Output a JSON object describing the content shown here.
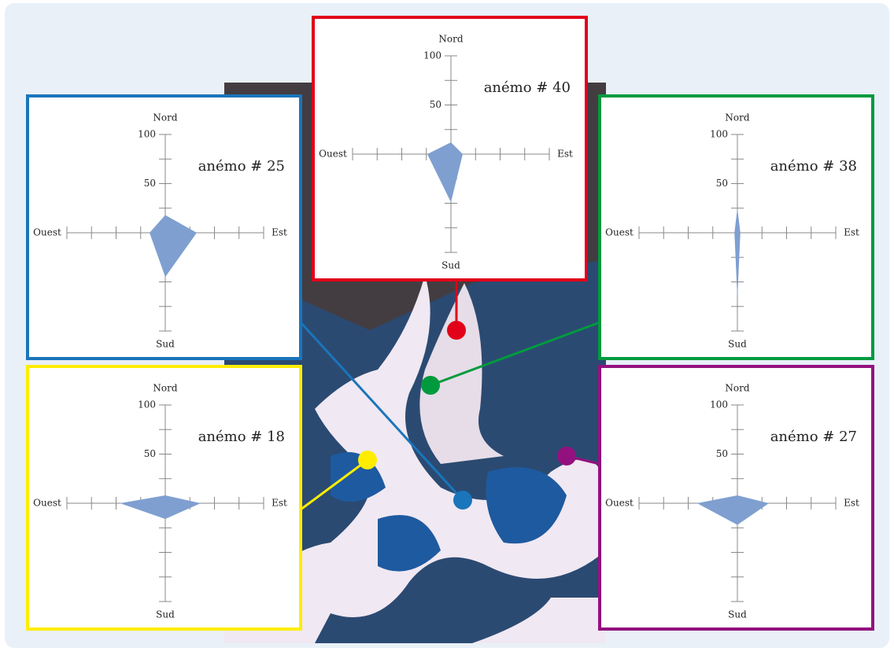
{
  "chart_data": [
    {
      "type": "radar",
      "title": "anémo # 25",
      "categories": [
        "Nord",
        "Est",
        "Sud",
        "Ouest"
      ],
      "values": [
        18,
        32,
        45,
        16
      ],
      "color": "#7f9fd0",
      "frame_color": "#1a75bb",
      "ylim": [
        0,
        100
      ],
      "yticks": [
        50,
        100
      ],
      "minor_yticks": [
        25,
        75
      ]
    },
    {
      "type": "radar",
      "title": "anémo # 40",
      "categories": [
        "Nord",
        "Est",
        "Sud",
        "Ouest"
      ],
      "values": [
        12,
        12,
        49,
        24
      ],
      "color": "#7f9fd0",
      "frame_color": "#e2001a",
      "ylim": [
        0,
        100
      ],
      "yticks": [
        50,
        100
      ],
      "minor_yticks": [
        25,
        75
      ]
    },
    {
      "type": "radar",
      "title": "anémo # 38",
      "categories": [
        "Nord",
        "Est",
        "Sud",
        "Ouest"
      ],
      "values": [
        25,
        3,
        67,
        3
      ],
      "color": "#7f9fd0",
      "frame_color": "#009a3e",
      "ylim": [
        0,
        100
      ],
      "yticks": [
        50,
        100
      ],
      "minor_yticks": [
        25,
        75
      ]
    },
    {
      "type": "radar",
      "title": "anémo # 18",
      "categories": [
        "Nord",
        "Est",
        "Sud",
        "Ouest"
      ],
      "values": [
        8,
        36,
        16,
        46
      ],
      "color": "#7f9fd0",
      "frame_color": "#ffed00",
      "ylim": [
        0,
        100
      ],
      "yticks": [
        50,
        100
      ],
      "minor_yticks": [
        25,
        75
      ]
    },
    {
      "type": "radar",
      "title": "anémo # 27",
      "categories": [
        "Nord",
        "Est",
        "Sud",
        "Ouest"
      ],
      "values": [
        8,
        32,
        22,
        41
      ],
      "color": "#7f9fd0",
      "frame_color": "#93117e",
      "ylim": [
        0,
        100
      ],
      "yticks": [
        50,
        100
      ],
      "minor_yticks": [
        25,
        75
      ]
    }
  ]
}
